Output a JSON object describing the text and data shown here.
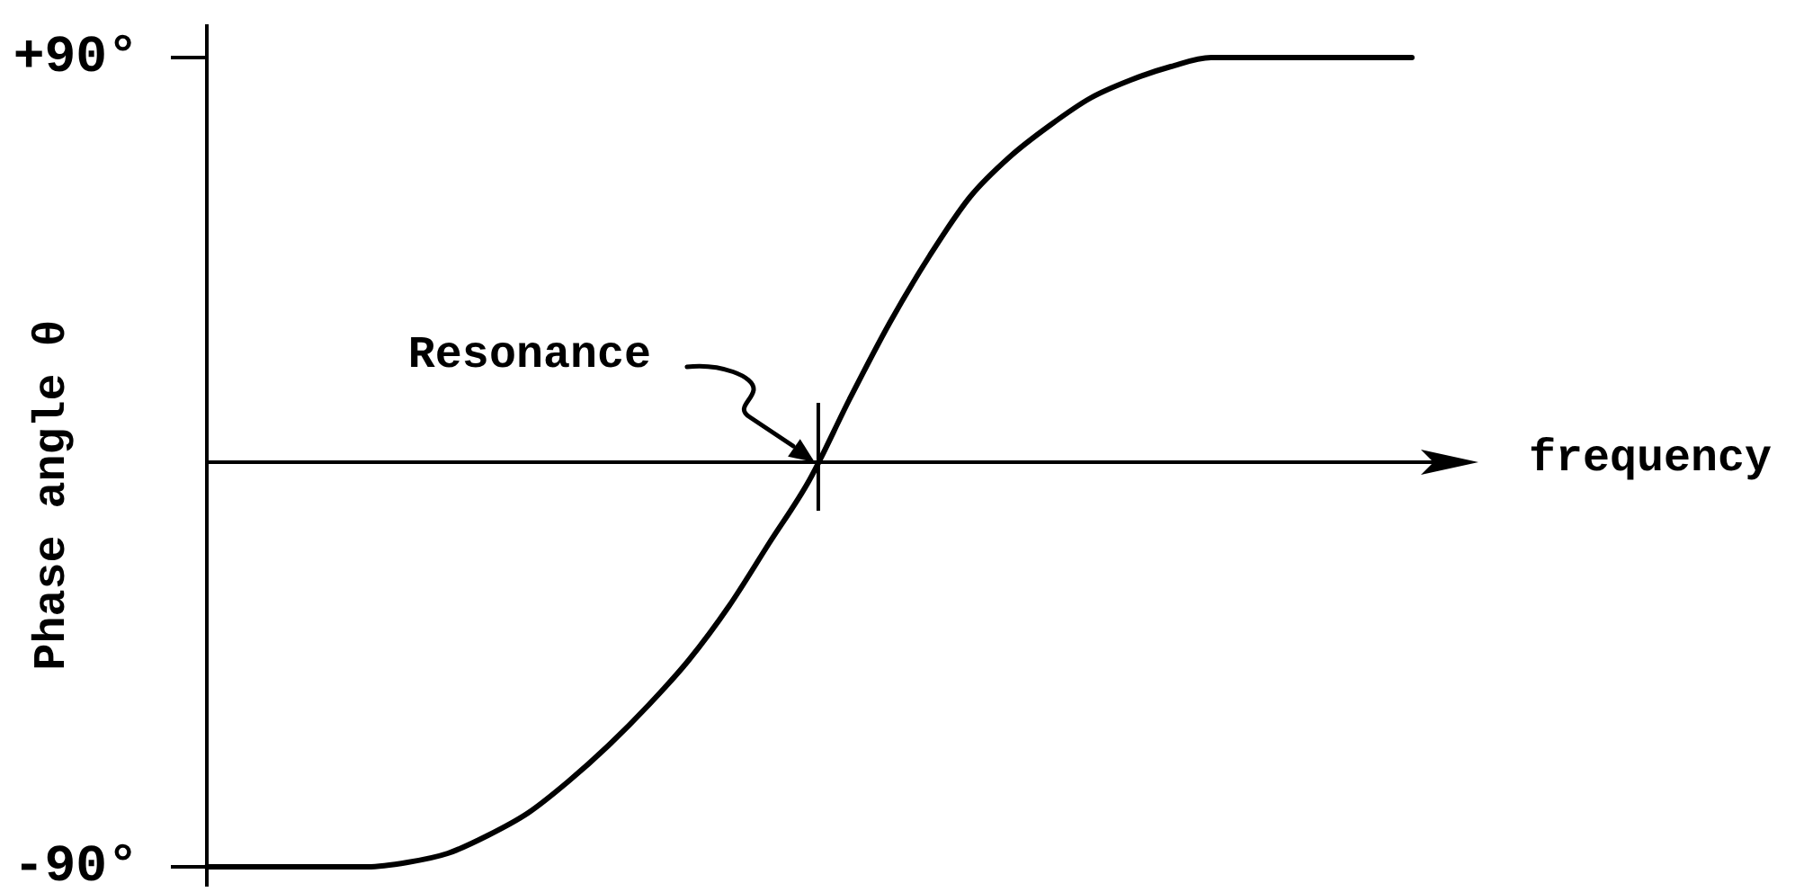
{
  "chart_data": {
    "type": "line",
    "ylabel": "Phase angle θ",
    "xlabel": "frequency",
    "categories": [
      null,
      null,
      null,
      null,
      null,
      null,
      null,
      null,
      null,
      null,
      null,
      null,
      null,
      null,
      null,
      null,
      null,
      null,
      null,
      null,
      null,
      null,
      null,
      null,
      null,
      null,
      null,
      null,
      null,
      null,
      null
    ],
    "series": [
      {
        "color": "#000000",
        "values": [
          -90,
          -90,
          -90,
          -90,
          -90,
          -89,
          -87,
          -83,
          -78,
          -71,
          -63,
          -54,
          -44,
          -32,
          -18,
          -4,
          14,
          31,
          46,
          59,
          68,
          75,
          81,
          85,
          88,
          90,
          90,
          90,
          90,
          90,
          90
        ]
      }
    ],
    "ylim": [
      -94,
      97
    ],
    "yticks": [
      {
        "value": 90,
        "label": "+90°"
      },
      {
        "value": -90,
        "label": "-90°"
      }
    ],
    "ref_lines": [
      {
        "axis": "y",
        "value": 0,
        "color": "#000000"
      }
    ],
    "tick_labels": "y",
    "marker": "none",
    "annotations": [
      "Resonance"
    ]
  }
}
